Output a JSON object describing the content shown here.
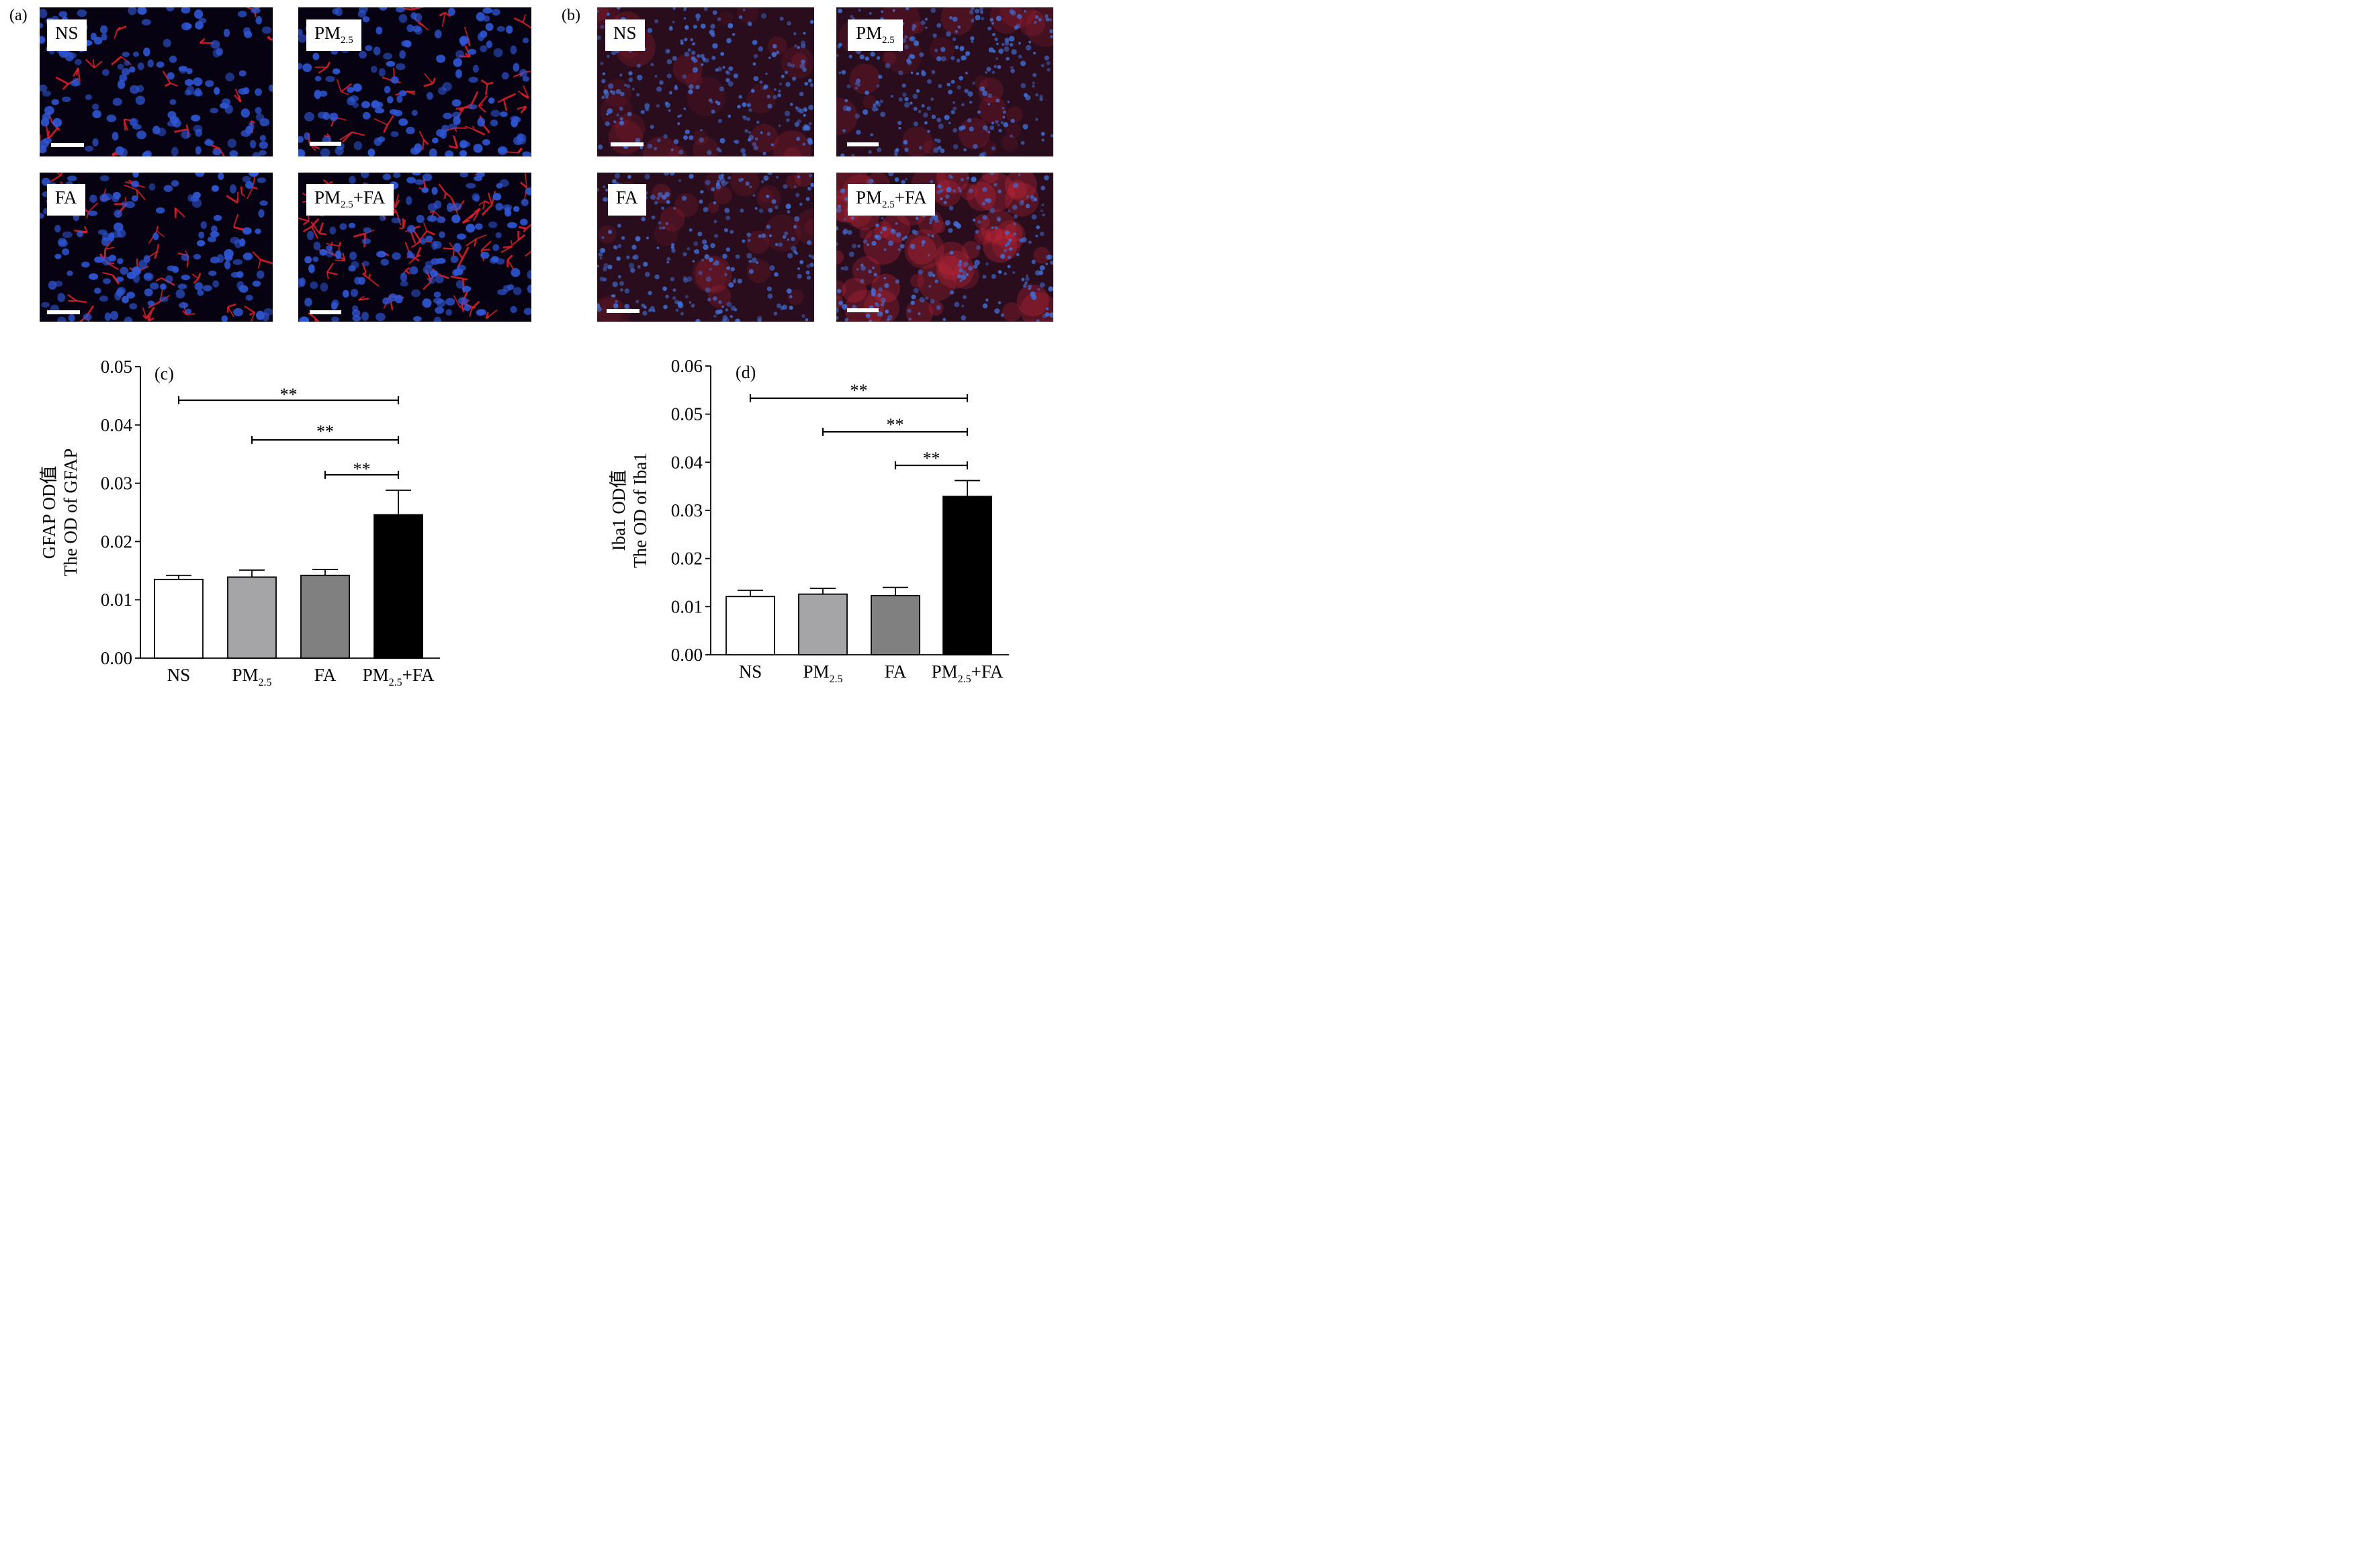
{
  "panels": {
    "a_label": "(a)",
    "b_label": "(b)",
    "group_labels": [
      {
        "main": "NS",
        "sub": "",
        "suffix": ""
      },
      {
        "main": "PM",
        "sub": "2.5",
        "suffix": ""
      },
      {
        "main": "FA",
        "sub": "",
        "suffix": ""
      },
      {
        "main": "PM",
        "sub": "2.5",
        "suffix": "+FA"
      }
    ]
  },
  "colors": {
    "nuclei": "#2f57d6",
    "gfap_stain": "#e0202a",
    "iba1_stain": "#c8283a",
    "image_bg": "#070212",
    "bar_ns": "#ffffff",
    "bar_pm": "#a5a5a8",
    "bar_fa": "#808080",
    "bar_pmfa": "#000000"
  },
  "chart_data": [
    {
      "type": "bar",
      "panel_label": "(c)",
      "categories": [
        {
          "main": "NS",
          "sub": "",
          "suffix": ""
        },
        {
          "main": "PM",
          "sub": "2.5",
          "suffix": ""
        },
        {
          "main": "FA",
          "sub": "",
          "suffix": ""
        },
        {
          "main": "PM",
          "sub": "2.5",
          "suffix": "+FA"
        }
      ],
      "values": [
        0.0135,
        0.0139,
        0.0142,
        0.0246
      ],
      "errors": [
        0.0007,
        0.0012,
        0.001,
        0.0042
      ],
      "ylabel_cn": "GFAP OD值",
      "ylabel_en": "The OD of GFAP",
      "ylim": [
        0,
        0.05
      ],
      "yticks": [
        "0.00",
        "0.01",
        "0.02",
        "0.03",
        "0.04",
        "0.05"
      ],
      "significance": [
        {
          "from": 0,
          "to": 3,
          "label": "**"
        },
        {
          "from": 1,
          "to": 3,
          "label": "**"
        },
        {
          "from": 2,
          "to": 3,
          "label": "**"
        }
      ]
    },
    {
      "type": "bar",
      "panel_label": "(d)",
      "categories": [
        {
          "main": "NS",
          "sub": "",
          "suffix": ""
        },
        {
          "main": "PM",
          "sub": "2.5",
          "suffix": ""
        },
        {
          "main": "FA",
          "sub": "",
          "suffix": ""
        },
        {
          "main": "PM",
          "sub": "2.5",
          "suffix": "+FA"
        }
      ],
      "values": [
        0.0121,
        0.0126,
        0.0123,
        0.0329
      ],
      "errors": [
        0.0013,
        0.0012,
        0.0017,
        0.0033
      ],
      "ylabel_cn": "Iba1 OD值",
      "ylabel_en": "The OD of Iba1",
      "ylim": [
        0,
        0.06
      ],
      "yticks": [
        "0.00",
        "0.01",
        "0.02",
        "0.03",
        "0.04",
        "0.05",
        "0.06"
      ],
      "significance": [
        {
          "from": 0,
          "to": 3,
          "label": "**"
        },
        {
          "from": 1,
          "to": 3,
          "label": "**"
        },
        {
          "from": 2,
          "to": 3,
          "label": "**"
        }
      ]
    }
  ]
}
